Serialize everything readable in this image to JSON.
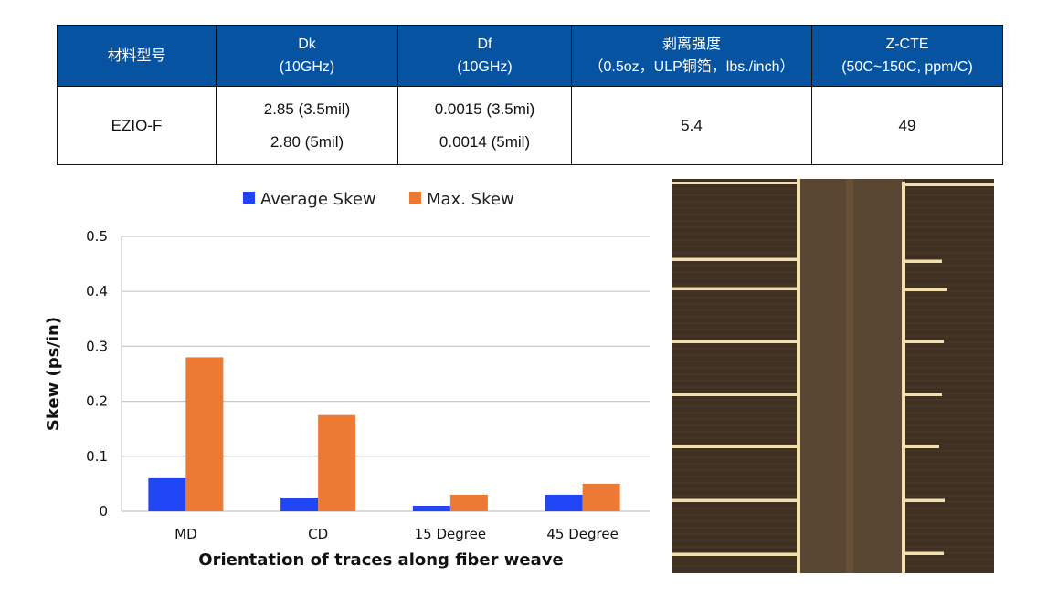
{
  "table": {
    "headers": [
      {
        "line1": "材料型号",
        "line2": ""
      },
      {
        "line1": "Dk",
        "line2": "(10GHz)"
      },
      {
        "line1": "Df",
        "line2": "(10GHz)"
      },
      {
        "line1": "剥离强度",
        "line2": "（0.5oz，ULP铜箔，lbs./inch）"
      },
      {
        "line1": "Z-CTE",
        "line2": "(50C~150C, ppm/C)"
      }
    ],
    "row": {
      "material": "EZIO-F",
      "dk": [
        "2.85 (3.5mil)",
        "2.80 (5mil)"
      ],
      "df": [
        "0.0015 (3.5mi)",
        "0.0014 (5mil)"
      ],
      "peel": "5.4",
      "zcte": "49"
    }
  },
  "chart_data": {
    "type": "bar",
    "title": "",
    "xlabel": "Orientation of traces along fiber weave",
    "ylabel": "Skew (ps/in)",
    "categories": [
      "MD",
      "CD",
      "15 Degree",
      "45 Degree"
    ],
    "series": [
      {
        "name": "Average Skew",
        "color": "#1f45f5",
        "values": [
          0.06,
          0.025,
          0.01,
          0.03
        ]
      },
      {
        "name": "Max. Skew",
        "color": "#ec7a34",
        "values": [
          0.28,
          0.175,
          0.03,
          0.05
        ]
      }
    ],
    "ylim": [
      0,
      0.5
    ],
    "yticks": [
      "0",
      "0.1",
      "0.2",
      "0.3",
      "0.4",
      "0.5"
    ],
    "grid": true,
    "legend": "top"
  }
}
